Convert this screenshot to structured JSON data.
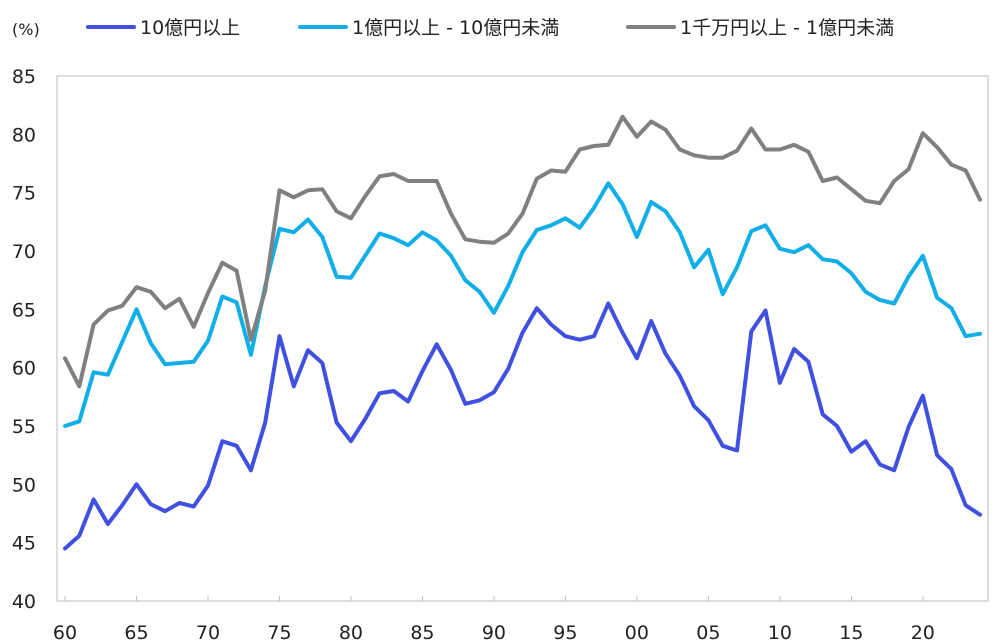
{
  "chart_data": {
    "type": "line",
    "ylabel": "(%)",
    "ylim": [
      40,
      85
    ],
    "yticks": [
      40,
      45,
      50,
      55,
      60,
      65,
      70,
      75,
      80,
      85
    ],
    "xlim": [
      1960,
      2024
    ],
    "xticks": [
      {
        "year": 1960,
        "label": "60"
      },
      {
        "year": 1965,
        "label": "65"
      },
      {
        "year": 1970,
        "label": "70"
      },
      {
        "year": 1975,
        "label": "75"
      },
      {
        "year": 1980,
        "label": "80"
      },
      {
        "year": 1985,
        "label": "85"
      },
      {
        "year": 1990,
        "label": "90"
      },
      {
        "year": 1995,
        "label": "95"
      },
      {
        "year": 2000,
        "label": "00"
      },
      {
        "year": 2005,
        "label": "05"
      },
      {
        "year": 2010,
        "label": "10"
      },
      {
        "year": 2015,
        "label": "15"
      },
      {
        "year": 2020,
        "label": "20"
      }
    ],
    "x": [
      1960,
      1961,
      1962,
      1963,
      1964,
      1965,
      1966,
      1967,
      1968,
      1969,
      1970,
      1971,
      1972,
      1973,
      1974,
      1975,
      1976,
      1977,
      1978,
      1979,
      1980,
      1981,
      1982,
      1983,
      1984,
      1985,
      1986,
      1987,
      1988,
      1989,
      1990,
      1991,
      1992,
      1993,
      1994,
      1995,
      1996,
      1997,
      1998,
      1999,
      2000,
      2001,
      2002,
      2003,
      2004,
      2005,
      2006,
      2007,
      2008,
      2009,
      2010,
      2011,
      2012,
      2013,
      2014,
      2015,
      2016,
      2017,
      2018,
      2019,
      2020,
      2021,
      2022,
      2023,
      2024
    ],
    "series": [
      {
        "name": "10億円以上",
        "color": "#4050e0",
        "values": [
          44.5,
          45.6,
          48.7,
          46.6,
          48.2,
          50.0,
          48.3,
          47.7,
          48.4,
          48.1,
          49.9,
          53.7,
          53.3,
          51.2,
          55.3,
          62.7,
          58.4,
          61.5,
          60.4,
          55.3,
          53.7,
          55.6,
          57.8,
          58.0,
          57.1,
          59.7,
          62.0,
          59.8,
          56.9,
          57.2,
          57.9,
          59.9,
          63.0,
          65.1,
          63.7,
          62.7,
          62.4,
          62.7,
          65.5,
          63.0,
          60.8,
          64.0,
          61.2,
          59.3,
          56.7,
          55.5,
          53.3,
          52.9,
          63.1,
          64.9,
          58.7,
          61.6,
          60.5,
          56.0,
          55.0,
          52.8,
          53.7,
          51.7,
          51.2,
          54.9,
          57.6,
          52.5,
          51.3,
          48.2,
          47.4
        ]
      },
      {
        "name": "1億円以上 - 10億円未満",
        "color": "#12aee8",
        "values": [
          55.0,
          55.4,
          59.6,
          59.4,
          62.2,
          65.0,
          62.1,
          60.3,
          60.4,
          60.5,
          62.3,
          66.1,
          65.6,
          61.1,
          67.0,
          71.9,
          71.6,
          72.7,
          71.2,
          67.8,
          67.7,
          69.6,
          71.5,
          71.1,
          70.5,
          71.6,
          70.9,
          69.6,
          67.5,
          66.5,
          64.7,
          67.0,
          69.9,
          71.8,
          72.2,
          72.8,
          72.0,
          73.7,
          75.8,
          74.0,
          71.2,
          74.2,
          73.4,
          71.6,
          68.6,
          70.1,
          66.3,
          68.6,
          71.7,
          72.2,
          70.2,
          69.9,
          70.5,
          69.3,
          69.1,
          68.1,
          66.5,
          65.8,
          65.5,
          67.8,
          69.6,
          66.0,
          65.1,
          62.7,
          62.9
        ]
      },
      {
        "name": "1千万円以上 - 1億円未満",
        "color": "#808080",
        "values": [
          60.8,
          58.4,
          63.7,
          64.9,
          65.3,
          66.9,
          66.5,
          65.1,
          65.9,
          63.5,
          66.4,
          69.0,
          68.3,
          62.4,
          66.6,
          75.2,
          74.6,
          75.2,
          75.3,
          73.4,
          72.8,
          74.7,
          76.4,
          76.6,
          76.0,
          76.0,
          76.0,
          73.2,
          71.0,
          70.8,
          70.7,
          71.5,
          73.2,
          76.2,
          76.9,
          76.8,
          78.7,
          79.0,
          79.1,
          81.5,
          79.8,
          81.1,
          80.4,
          78.7,
          78.2,
          78.0,
          78.0,
          78.6,
          80.5,
          78.7,
          78.7,
          79.1,
          78.5,
          76.0,
          76.3,
          75.3,
          74.3,
          74.1,
          76.0,
          77.0,
          80.1,
          78.9,
          77.4,
          76.9,
          74.4
        ]
      }
    ]
  }
}
